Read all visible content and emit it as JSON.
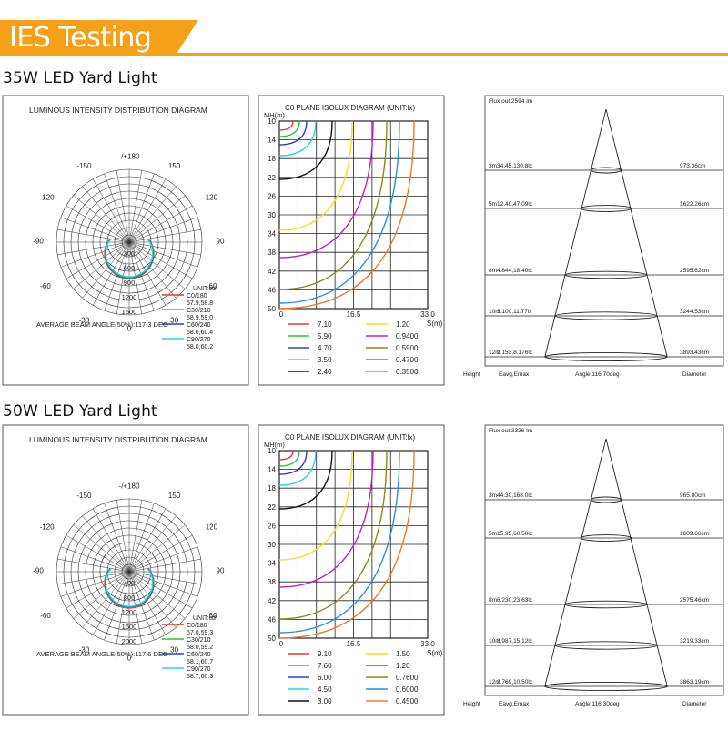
{
  "header": {
    "title": "IES Testing",
    "accent": "#f6a01a"
  },
  "chart_data": [
    {
      "section_title": "35W LED Yard Light",
      "polar": {
        "type": "polar",
        "title": "LUMINOUS INTENSITY DISTRIBUTION DIAGRAM",
        "angle_labels": [
          "-/+180",
          "-150",
          "150",
          "-120",
          "120",
          "-90",
          "90",
          "-60",
          "60",
          "-30",
          "30",
          "0"
        ],
        "radial_labels": [
          "300",
          "600",
          "900",
          "1200",
          "1500"
        ],
        "unit_label": "UNIT:cd",
        "legend": [
          {
            "name": "C0/180",
            "values": "57.9,58.8",
            "color": "#e03a2a"
          },
          {
            "name": "C30/210",
            "values": "58.9,59.0",
            "color": "#2bc43a"
          },
          {
            "name": "C60/240",
            "values": "58.0,60.4",
            "color": "#2a40c8"
          },
          {
            "name": "C90/270",
            "values": "58.0,60.2",
            "color": "#22d6e0"
          }
        ],
        "beam_angle": "AVERAGE BEAM ANGLE(50%):117.3 DEG"
      },
      "isolux": {
        "type": "contour",
        "title": "C0 PLANE ISOLUX DIAGRAM (UNIT:lx)",
        "ylabel": "MH(m)",
        "y_ticks": [
          "10",
          "14",
          "18",
          "22",
          "26",
          "30",
          "34",
          "38",
          "42",
          "46",
          "50"
        ],
        "x_ticks": [
          "0",
          "16.5",
          "33.0"
        ],
        "xlabel": "S(m)",
        "series": [
          {
            "name": "7.10",
            "color": "#e03a3a"
          },
          {
            "name": "5.90",
            "color": "#2bc43a"
          },
          {
            "name": "4.70",
            "color": "#2a40c8"
          },
          {
            "name": "3.50",
            "color": "#22d6e0"
          },
          {
            "name": "2.40",
            "color": "#111111"
          },
          {
            "name": "1.20",
            "color": "#f0e020"
          },
          {
            "name": "0.9400",
            "color": "#c020c0"
          },
          {
            "name": "0.5900",
            "color": "#8a8a1a"
          },
          {
            "name": "0.4700",
            "color": "#2a90d8"
          },
          {
            "name": "0.3500",
            "color": "#f07a2a"
          }
        ]
      },
      "cone": {
        "type": "table",
        "flux": "Flux out:2594 lm",
        "rows": [
          {
            "height": "3m",
            "eavg": "34.45,130.8lx",
            "diameter": "973.36cm"
          },
          {
            "height": "5m",
            "eavg": "12.40,47.09lx",
            "diameter": "1622.26cm"
          },
          {
            "height": "8m",
            "eavg": "4.844,18.40lx",
            "diameter": "2595.62cm"
          },
          {
            "height": "10m",
            "eavg": "3.100,11.77lx",
            "diameter": "3244.53cm"
          },
          {
            "height": "12m",
            "eavg": "2.153,8.176lx",
            "diameter": "3893.43cm"
          }
        ],
        "footer": {
          "height": "Height",
          "eavg": "Eavg,Emax",
          "angle": "Angle:116.70deg",
          "diameter": "Diameter"
        }
      }
    },
    {
      "section_title": "50W LED Yard Light",
      "polar": {
        "type": "polar",
        "title": "LUMINOUS INTENSITY DISTRIBUTION DIAGRAM",
        "angle_labels": [
          "-/+180",
          "-150",
          "150",
          "-120",
          "120",
          "-90",
          "90",
          "-60",
          "60",
          "-30",
          "30",
          "0"
        ],
        "radial_labels": [
          "400",
          "800",
          "1200",
          "1600",
          "2000"
        ],
        "unit_label": "UNIT:cd",
        "legend": [
          {
            "name": "C0/180",
            "values": "57.0,59.3",
            "color": "#e03a2a"
          },
          {
            "name": "C30/210",
            "values": "58.0,59.2",
            "color": "#2bc43a"
          },
          {
            "name": "C60/240",
            "values": "58.1,60.7",
            "color": "#2a40c8"
          },
          {
            "name": "C90/270",
            "values": "58.7,60.3",
            "color": "#22d6e0"
          }
        ],
        "beam_angle": "AVERAGE BEAM ANGLE(50%):117.6 DEG"
      },
      "isolux": {
        "type": "contour",
        "title": "C0 PLANE ISOLUX DIAGRAM (UNIT:lx)",
        "ylabel": "MH(m)",
        "y_ticks": [
          "10",
          "14",
          "18",
          "22",
          "26",
          "30",
          "34",
          "38",
          "42",
          "46",
          "50"
        ],
        "x_ticks": [
          "0",
          "16.5",
          "33.0"
        ],
        "xlabel": "S(m)",
        "series": [
          {
            "name": "9.10",
            "color": "#e03a3a"
          },
          {
            "name": "7.60",
            "color": "#2bc43a"
          },
          {
            "name": "6.00",
            "color": "#2a40c8"
          },
          {
            "name": "4.50",
            "color": "#22d6e0"
          },
          {
            "name": "3.00",
            "color": "#111111"
          },
          {
            "name": "1.50",
            "color": "#f0e020"
          },
          {
            "name": "1.20",
            "color": "#c020c0"
          },
          {
            "name": "0.7600",
            "color": "#8a8a1a"
          },
          {
            "name": "0.6000",
            "color": "#2a90d8"
          },
          {
            "name": "0.4500",
            "color": "#f07a2a"
          }
        ]
      },
      "cone": {
        "type": "table",
        "flux": "Flux out:3336 lm",
        "rows": [
          {
            "height": "3m",
            "eavg": "44.30,168.0lx",
            "diameter": "965.80cm"
          },
          {
            "height": "5m",
            "eavg": "15.95,60.50lx",
            "diameter": "1609.66cm"
          },
          {
            "height": "8m",
            "eavg": "6.230,23.63lx",
            "diameter": "2575.46cm"
          },
          {
            "height": "10m",
            "eavg": "3.987,15.12lx",
            "diameter": "3219.33cm"
          },
          {
            "height": "12m",
            "eavg": "2.769,10.50lx",
            "diameter": "3863.19cm"
          }
        ],
        "footer": {
          "height": "Height",
          "eavg": "Eavg,Emax",
          "angle": "Angle:116.30deg",
          "diameter": "Diameter"
        }
      }
    }
  ]
}
